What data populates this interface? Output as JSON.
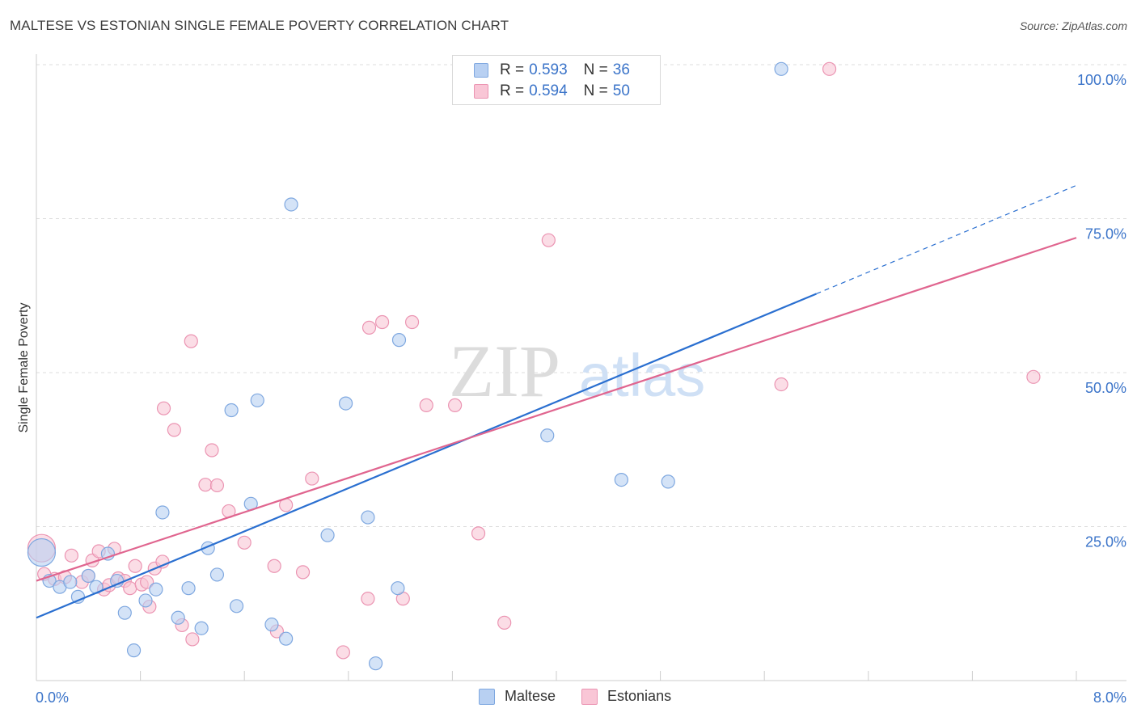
{
  "title": "MALTESE VS ESTONIAN SINGLE FEMALE POVERTY CORRELATION CHART",
  "source": "Source: ZipAtlas.com",
  "watermark": {
    "bold": "ZIP",
    "light": "atlas"
  },
  "legend": {
    "rows": [
      {
        "r_label": "R =",
        "r_value": "0.593",
        "n_label": "N =",
        "n_value": "36"
      },
      {
        "r_label": "R =",
        "r_value": "0.594",
        "n_label": "N =",
        "n_value": "50"
      }
    ]
  },
  "colors": {
    "maltese_fill": "#b8d0f2",
    "maltese_stroke": "#7fa8e0",
    "maltese_line": "#2a6fd0",
    "estonian_fill": "#f9c6d6",
    "estonian_stroke": "#eb94b2",
    "estonian_line": "#e0658f",
    "axis_label": "#3b74c9",
    "grid": "#dddddd"
  },
  "chart_data": {
    "type": "scatter",
    "title": "MALTESE VS ESTONIAN SINGLE FEMALE POVERTY CORRELATION CHART",
    "xlabel": "",
    "ylabel": "Single Female Poverty",
    "xlim": [
      0,
      8
    ],
    "ylim": [
      0,
      100
    ],
    "x_tick_labels": [
      "0.0%",
      "8.0%"
    ],
    "y_ticks": [
      25,
      50,
      75,
      100
    ],
    "y_tick_labels": [
      "25.0%",
      "50.0%",
      "75.0%",
      "100.0%"
    ],
    "series": [
      {
        "name": "Maltese",
        "r": 0.593,
        "n": 36,
        "trend": {
          "x0": 0,
          "y0": 10.2,
          "x1": 6.0,
          "y1": 62.8,
          "dash_to_x": 8.0,
          "dash_to_y": 80.4
        },
        "points": [
          {
            "x": 0.04,
            "y": 20.8,
            "big": true
          },
          {
            "x": 0.1,
            "y": 16.2
          },
          {
            "x": 0.18,
            "y": 15.2
          },
          {
            "x": 0.26,
            "y": 16.0
          },
          {
            "x": 0.32,
            "y": 13.6
          },
          {
            "x": 0.4,
            "y": 17.0
          },
          {
            "x": 0.46,
            "y": 15.2
          },
          {
            "x": 0.55,
            "y": 20.6
          },
          {
            "x": 0.62,
            "y": 16.2
          },
          {
            "x": 0.68,
            "y": 11.0
          },
          {
            "x": 0.75,
            "y": 4.9
          },
          {
            "x": 0.84,
            "y": 13.0
          },
          {
            "x": 0.92,
            "y": 14.8
          },
          {
            "x": 0.97,
            "y": 27.3
          },
          {
            "x": 1.09,
            "y": 10.2
          },
          {
            "x": 1.17,
            "y": 15.0
          },
          {
            "x": 1.27,
            "y": 8.5
          },
          {
            "x": 1.32,
            "y": 21.5
          },
          {
            "x": 1.39,
            "y": 17.2
          },
          {
            "x": 1.5,
            "y": 43.9
          },
          {
            "x": 1.54,
            "y": 12.1
          },
          {
            "x": 1.65,
            "y": 28.7
          },
          {
            "x": 1.7,
            "y": 45.5
          },
          {
            "x": 1.81,
            "y": 9.1
          },
          {
            "x": 1.92,
            "y": 6.8
          },
          {
            "x": 1.96,
            "y": 77.3
          },
          {
            "x": 2.24,
            "y": 23.6
          },
          {
            "x": 2.38,
            "y": 45.0
          },
          {
            "x": 2.55,
            "y": 26.5
          },
          {
            "x": 2.61,
            "y": 2.8
          },
          {
            "x": 2.78,
            "y": 15.0
          },
          {
            "x": 2.79,
            "y": 55.3
          },
          {
            "x": 3.93,
            "y": 39.8
          },
          {
            "x": 4.5,
            "y": 32.6
          },
          {
            "x": 4.86,
            "y": 32.3
          },
          {
            "x": 5.73,
            "y": 99.3
          }
        ]
      },
      {
        "name": "Estonians",
        "r": 0.594,
        "n": 50,
        "trend": {
          "x0": 0,
          "y0": 16.2,
          "x1": 8.0,
          "y1": 71.9
        },
        "points": [
          {
            "x": 0.04,
            "y": 21.5,
            "big": true
          },
          {
            "x": 0.06,
            "y": 17.3
          },
          {
            "x": 0.14,
            "y": 16.5
          },
          {
            "x": 0.22,
            "y": 16.8
          },
          {
            "x": 0.27,
            "y": 20.3
          },
          {
            "x": 0.35,
            "y": 16.0
          },
          {
            "x": 0.4,
            "y": 17.0
          },
          {
            "x": 0.43,
            "y": 19.5
          },
          {
            "x": 0.48,
            "y": 21.0
          },
          {
            "x": 0.52,
            "y": 14.8
          },
          {
            "x": 0.56,
            "y": 15.5
          },
          {
            "x": 0.6,
            "y": 21.4
          },
          {
            "x": 0.63,
            "y": 16.6
          },
          {
            "x": 0.68,
            "y": 16.2
          },
          {
            "x": 0.72,
            "y": 15.0
          },
          {
            "x": 0.76,
            "y": 18.6
          },
          {
            "x": 0.81,
            "y": 15.6
          },
          {
            "x": 0.85,
            "y": 16.0
          },
          {
            "x": 0.87,
            "y": 12.0
          },
          {
            "x": 0.91,
            "y": 18.2
          },
          {
            "x": 0.97,
            "y": 19.3
          },
          {
            "x": 0.98,
            "y": 44.2
          },
          {
            "x": 1.06,
            "y": 40.7
          },
          {
            "x": 1.12,
            "y": 9.0
          },
          {
            "x": 1.19,
            "y": 55.1
          },
          {
            "x": 1.2,
            "y": 6.7
          },
          {
            "x": 1.3,
            "y": 31.8
          },
          {
            "x": 1.35,
            "y": 37.4
          },
          {
            "x": 1.39,
            "y": 31.7
          },
          {
            "x": 1.48,
            "y": 27.5
          },
          {
            "x": 1.6,
            "y": 22.4
          },
          {
            "x": 1.83,
            "y": 18.6
          },
          {
            "x": 1.85,
            "y": 8.0
          },
          {
            "x": 1.92,
            "y": 28.5
          },
          {
            "x": 2.05,
            "y": 17.6
          },
          {
            "x": 2.12,
            "y": 32.8
          },
          {
            "x": 2.36,
            "y": 4.6
          },
          {
            "x": 2.55,
            "y": 13.3
          },
          {
            "x": 2.56,
            "y": 57.3
          },
          {
            "x": 2.66,
            "y": 58.2
          },
          {
            "x": 2.82,
            "y": 13.3
          },
          {
            "x": 2.89,
            "y": 58.2
          },
          {
            "x": 3.0,
            "y": 44.7
          },
          {
            "x": 3.22,
            "y": 44.7
          },
          {
            "x": 3.4,
            "y": 23.9
          },
          {
            "x": 3.6,
            "y": 9.4
          },
          {
            "x": 3.94,
            "y": 71.5
          },
          {
            "x": 5.73,
            "y": 48.1
          },
          {
            "x": 6.1,
            "y": 99.3
          },
          {
            "x": 7.67,
            "y": 49.3
          }
        ]
      }
    ],
    "legend_position": "top-center",
    "grid": true
  }
}
